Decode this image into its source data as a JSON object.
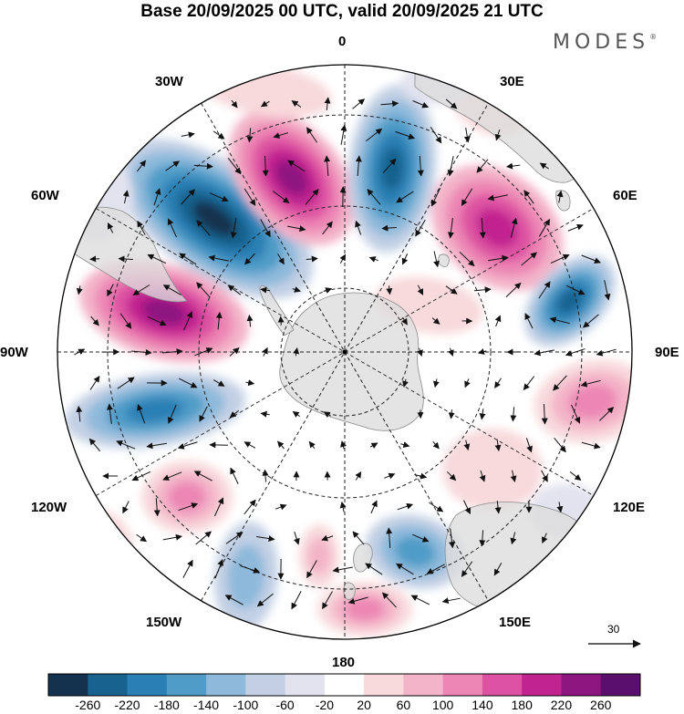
{
  "title": "Base 20/09/2025 00 UTC, valid 20/09/2025 21 UTC",
  "brand": {
    "name": "MODES",
    "mark": "®"
  },
  "map": {
    "projection": "south-polar-stereographic",
    "longitude_labels": {
      "lon_0": "0",
      "lon_30e": "30E",
      "lon_60e": "60E",
      "lon_90e": "90E",
      "lon_120e": "120E",
      "lon_150e": "150E",
      "lon_180": "180",
      "lon_150w": "150W",
      "lon_120w": "120W",
      "lon_90w": "90W",
      "lon_60w": "60W",
      "lon_30w": "30W"
    },
    "reference_vector": {
      "value": "30"
    }
  },
  "colorbar": {
    "labels": [
      "-260",
      "-220",
      "-180",
      "-140",
      "-100",
      "-60",
      "-20",
      "20",
      "60",
      "100",
      "140",
      "180",
      "220",
      "260"
    ],
    "colors": [
      "#12324e",
      "#17628e",
      "#2a7fb4",
      "#4f9cc8",
      "#8eb9da",
      "#c3d0e4",
      "#e3e3ef",
      "#ffffff",
      "#f8d9dc",
      "#f3b3c8",
      "#ec86b4",
      "#dd52a2",
      "#c1248f",
      "#8d1580",
      "#5a0f6e"
    ]
  }
}
